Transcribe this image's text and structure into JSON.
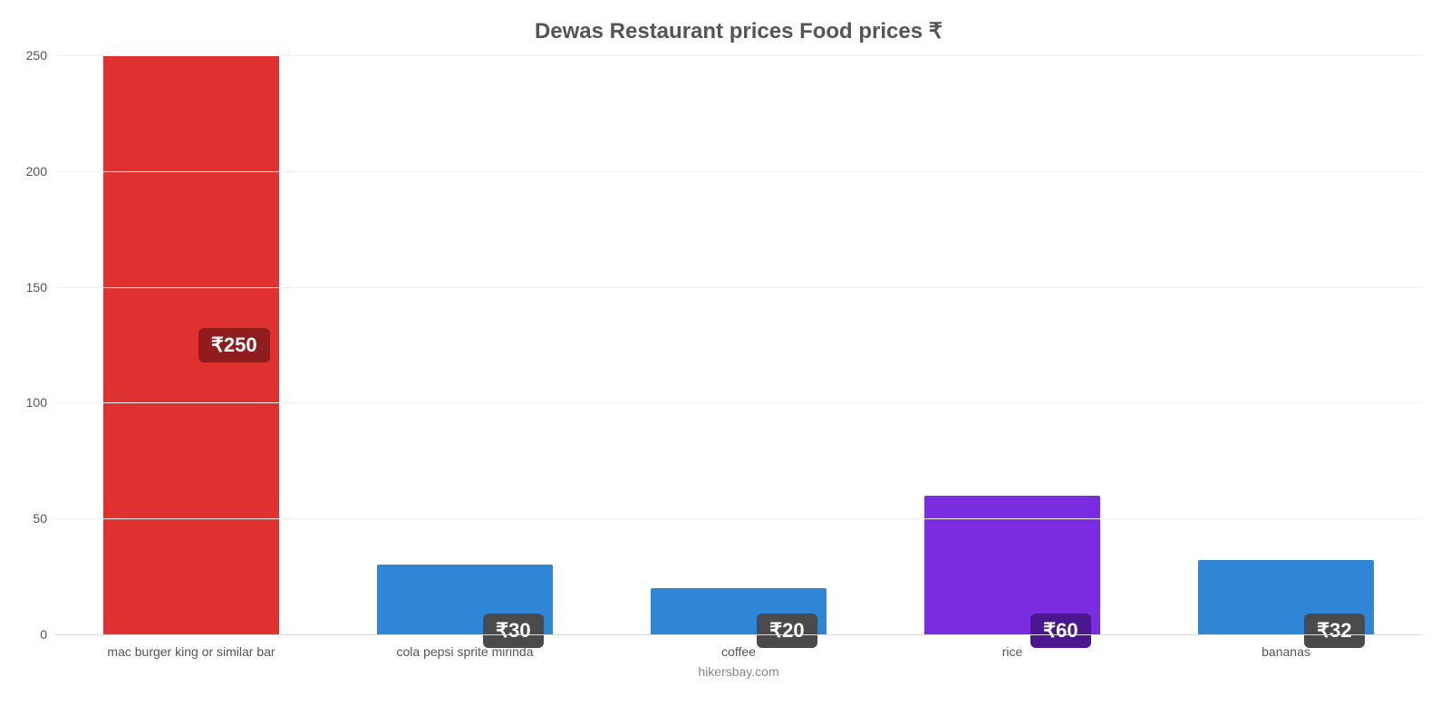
{
  "chart": {
    "type": "bar",
    "title": "Dewas Restaurant prices Food prices ₹",
    "title_fontsize": 24,
    "title_color": "#555555",
    "background_color": "#ffffff",
    "grid_color": "#f3f3f3",
    "axis_line_color": "#dddddd",
    "ylim": [
      0,
      250
    ],
    "ytick_step": 50,
    "yticks": [
      0,
      50,
      100,
      150,
      200,
      250
    ],
    "bar_width_pct": 64,
    "label_fontsize": 14,
    "value_badge_fontsize": 22,
    "categories": [
      "mac burger king or similar bar",
      "cola pepsi sprite mirinda",
      "coffee",
      "rice",
      "bananas"
    ],
    "values": [
      250,
      30,
      20,
      60,
      32
    ],
    "value_labels": [
      "₹250",
      "₹30",
      "₹20",
      "₹60",
      "₹32"
    ],
    "bar_colors": [
      "#e03131",
      "#2f86d7",
      "#2f86d7",
      "#7a2de0",
      "#2f86d7"
    ],
    "badge_bg_colors": [
      "#8f1d1d",
      "#4a4a4a",
      "#4a4a4a",
      "#4a178f",
      "#4a4a4a"
    ],
    "credit": "hikersbay.com",
    "credit_color": "#888888"
  }
}
